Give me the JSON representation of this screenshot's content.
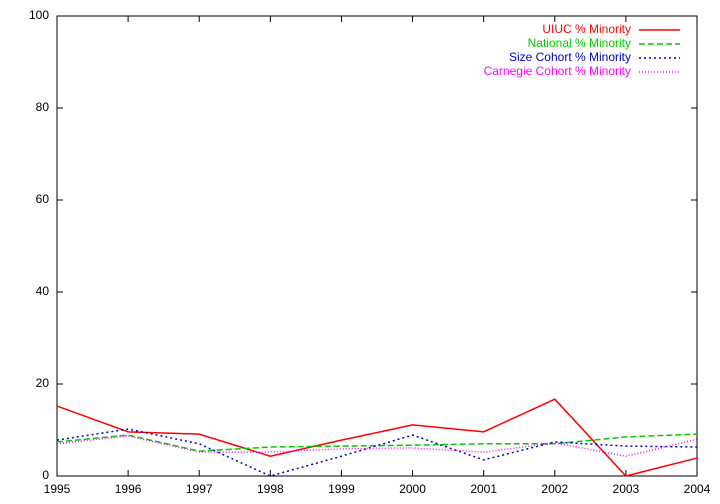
{
  "chart_data": {
    "type": "line",
    "x": [
      1995,
      1996,
      1997,
      1998,
      1999,
      2000,
      2001,
      2002,
      2003,
      2004
    ],
    "xlim": [
      1995,
      2004
    ],
    "xticks": [
      1995,
      1996,
      1997,
      1998,
      1999,
      2000,
      2001,
      2002,
      2003,
      2004
    ],
    "ylim": [
      0,
      100
    ],
    "yticks": [
      0,
      20,
      40,
      60,
      80,
      100
    ],
    "legend": "top-right",
    "series": [
      {
        "name": "UIUC % Minority",
        "color": "#ff0000",
        "dash": "solid",
        "values": [
          15.2,
          9.6,
          9.1,
          4.3,
          7.8,
          11.1,
          9.6,
          16.7,
          0,
          3.9
        ]
      },
      {
        "name": "National % Minority",
        "color": "#00cc00",
        "dash": "dashed",
        "values": [
          7.4,
          8.9,
          5.4,
          6.3,
          6.5,
          6.7,
          7.0,
          7.0,
          8.5,
          9.1
        ]
      },
      {
        "name": "Size Cohort % Minority",
        "color": "#0000cc",
        "dash": "dotted",
        "values": [
          7.8,
          10.2,
          7.0,
          0,
          4.3,
          8.9,
          3.5,
          7.4,
          6.5,
          6.3
        ]
      },
      {
        "name": "Carnegie Cohort % Minority",
        "color": "#ff00ff",
        "dash": "fine",
        "values": [
          7.0,
          8.7,
          5.2,
          5.2,
          5.9,
          6.1,
          5.2,
          7.2,
          4.3,
          8.0
        ]
      }
    ]
  }
}
